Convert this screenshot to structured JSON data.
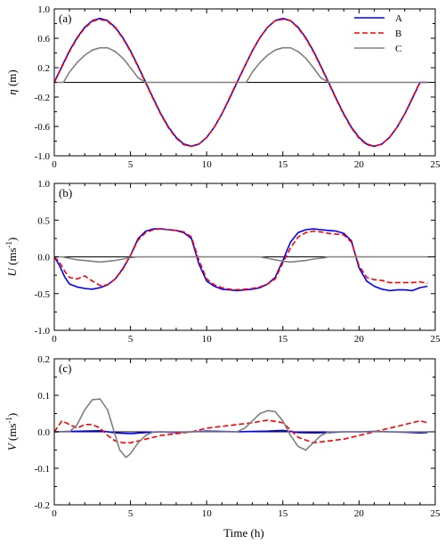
{
  "figure": {
    "xlabel": "Time (h)"
  },
  "legend": {
    "entries": [
      "A",
      "B",
      "C"
    ]
  },
  "chart_data": [
    {
      "type": "line",
      "panel_label": "(a)",
      "ylabel_main": "η",
      "ylabel_unit": " (m)",
      "ylabel_sup": "",
      "ylabel_unit_tail": "",
      "xlim": [
        0,
        25
      ],
      "ylim": [
        -1.0,
        1.0
      ],
      "x_ticks": [
        0,
        5,
        10,
        15,
        20,
        25
      ],
      "y_ticks": [
        -1.0,
        -0.6,
        -0.2,
        0.2,
        0.6,
        1.0
      ],
      "y_tick_labels": [
        "-1.0",
        "-0.6",
        "-0.2",
        "0.2",
        "0.6",
        "1.0"
      ],
      "zero_line": true,
      "legend": true,
      "series": [
        {
          "name": "A",
          "color": "#0000ff",
          "dash": "",
          "width": 1.6,
          "x": [
            0,
            0.5,
            1,
            1.5,
            2,
            2.5,
            3,
            3.5,
            4,
            4.5,
            5,
            5.5,
            6,
            6.5,
            7,
            7.5,
            8,
            8.5,
            9,
            9.5,
            10,
            10.5,
            11,
            11.5,
            12,
            12.5,
            13,
            13.5,
            14,
            14.5,
            15,
            15.5,
            16,
            16.5,
            17,
            17.5,
            18,
            18.5,
            19,
            19.5,
            20,
            20.5,
            21,
            21.5,
            22,
            22.5,
            23,
            23.5,
            24,
            24.5
          ],
          "y": [
            0,
            0.22,
            0.43,
            0.61,
            0.75,
            0.84,
            0.87,
            0.84,
            0.75,
            0.61,
            0.43,
            0.22,
            0.0,
            -0.22,
            -0.43,
            -0.61,
            -0.75,
            -0.84,
            -0.87,
            -0.84,
            -0.75,
            -0.61,
            -0.43,
            -0.22,
            0.0,
            0.22,
            0.43,
            0.61,
            0.75,
            0.84,
            0.87,
            0.84,
            0.75,
            0.61,
            0.43,
            0.22,
            0.0,
            -0.22,
            -0.43,
            -0.61,
            -0.75,
            -0.84,
            -0.87,
            -0.84,
            -0.75,
            -0.61,
            -0.43,
            -0.22,
            0.0,
            0.0
          ]
        },
        {
          "name": "B",
          "color": "#ff0000",
          "dash": "6,3",
          "width": 1.6,
          "x": [
            0,
            0.5,
            1,
            1.5,
            2,
            2.5,
            3,
            3.5,
            4,
            4.5,
            5,
            5.5,
            6,
            6.5,
            7,
            7.5,
            8,
            8.5,
            9,
            9.5,
            10,
            10.5,
            11,
            11.5,
            12,
            12.5,
            13,
            13.5,
            14,
            14.5,
            15,
            15.5,
            16,
            16.5,
            17,
            17.5,
            18,
            18.5,
            19,
            19.5,
            20,
            20.5,
            21,
            21.5,
            22,
            22.5,
            23,
            23.5,
            24,
            24.5
          ],
          "y": [
            0,
            0.21,
            0.42,
            0.6,
            0.74,
            0.83,
            0.86,
            0.83,
            0.74,
            0.6,
            0.42,
            0.21,
            -0.01,
            -0.23,
            -0.44,
            -0.62,
            -0.76,
            -0.85,
            -0.87,
            -0.84,
            -0.75,
            -0.61,
            -0.43,
            -0.21,
            0.01,
            0.22,
            0.43,
            0.61,
            0.75,
            0.84,
            0.86,
            0.84,
            0.74,
            0.6,
            0.42,
            0.21,
            -0.01,
            -0.23,
            -0.44,
            -0.62,
            -0.76,
            -0.85,
            -0.87,
            -0.84,
            -0.75,
            -0.61,
            -0.43,
            -0.21,
            0.0,
            0.0
          ]
        },
        {
          "name": "C",
          "color": "#808080",
          "dash": "",
          "width": 1.6,
          "x": [
            0,
            0.6,
            1,
            1.5,
            2,
            2.5,
            3,
            3.5,
            4,
            4.5,
            5,
            5.5,
            6,
            12,
            12.6,
            13,
            13.5,
            14,
            14.5,
            15,
            15.5,
            16,
            16.5,
            17,
            17.5,
            18,
            24.5
          ],
          "y": [
            0,
            0,
            0.14,
            0.27,
            0.37,
            0.44,
            0.47,
            0.47,
            0.42,
            0.33,
            0.2,
            0.06,
            0,
            0,
            0,
            0.14,
            0.27,
            0.37,
            0.44,
            0.47,
            0.47,
            0.42,
            0.33,
            0.2,
            0.06,
            0,
            0
          ]
        }
      ]
    },
    {
      "type": "line",
      "panel_label": "(b)",
      "ylabel_main": "U",
      "ylabel_unit": " (ms",
      "ylabel_sup": "-1",
      "ylabel_unit_tail": ")",
      "xlim": [
        0,
        25
      ],
      "ylim": [
        -1.0,
        1.0
      ],
      "x_ticks": [
        0,
        5,
        10,
        15,
        20,
        25
      ],
      "y_ticks": [
        -1.0,
        -0.5,
        0.0,
        0.5,
        1.0
      ],
      "y_tick_labels": [
        "-1.0",
        "-0.5",
        "0.0",
        "0.5",
        "1.0"
      ],
      "zero_line": true,
      "legend": false,
      "series": [
        {
          "name": "A",
          "color": "#0000ff",
          "dash": "",
          "width": 1.6,
          "x": [
            0,
            0.3,
            0.7,
            1,
            1.5,
            2,
            2.5,
            3,
            3.5,
            4,
            4.5,
            5,
            5.5,
            6,
            6.5,
            7,
            7.5,
            8,
            8.5,
            9,
            9.5,
            10,
            10.5,
            11,
            11.5,
            12,
            12.5,
            13,
            13.5,
            14,
            14.5,
            15,
            15.5,
            16,
            16.5,
            17,
            17.5,
            18,
            18.5,
            19,
            19.5,
            20,
            20.5,
            21,
            21.5,
            22,
            22.5,
            23,
            23.5,
            24,
            24.5
          ],
          "y": [
            0,
            -0.1,
            -0.28,
            -0.37,
            -0.41,
            -0.43,
            -0.44,
            -0.42,
            -0.38,
            -0.3,
            -0.16,
            0.02,
            0.25,
            0.35,
            0.38,
            0.38,
            0.37,
            0.36,
            0.33,
            0.25,
            -0.1,
            -0.33,
            -0.4,
            -0.44,
            -0.45,
            -0.46,
            -0.45,
            -0.44,
            -0.42,
            -0.37,
            -0.28,
            -0.05,
            0.2,
            0.33,
            0.37,
            0.38,
            0.37,
            0.36,
            0.35,
            0.32,
            0.22,
            -0.15,
            -0.33,
            -0.4,
            -0.44,
            -0.46,
            -0.45,
            -0.45,
            -0.46,
            -0.42,
            -0.4
          ]
        },
        {
          "name": "B",
          "color": "#ff0000",
          "dash": "6,3",
          "width": 1.6,
          "x": [
            0,
            0.3,
            0.7,
            1,
            1.5,
            2,
            2.5,
            3,
            3.5,
            4,
            4.5,
            5,
            5.5,
            6,
            6.5,
            7,
            7.5,
            8,
            8.5,
            9,
            9.5,
            10,
            10.5,
            11,
            11.5,
            12,
            12.5,
            13,
            13.5,
            14,
            14.5,
            15,
            15.5,
            16,
            16.5,
            17,
            17.5,
            18,
            18.5,
            19,
            19.5,
            20,
            20.5,
            21,
            21.5,
            22,
            22.5,
            23,
            23.5,
            24,
            24.5
          ],
          "y": [
            0,
            -0.06,
            -0.2,
            -0.28,
            -0.3,
            -0.26,
            -0.33,
            -0.39,
            -0.38,
            -0.3,
            -0.17,
            0.02,
            0.23,
            0.33,
            0.37,
            0.38,
            0.37,
            0.36,
            0.34,
            0.27,
            -0.05,
            -0.3,
            -0.38,
            -0.42,
            -0.44,
            -0.45,
            -0.44,
            -0.43,
            -0.41,
            -0.37,
            -0.3,
            -0.08,
            0.12,
            0.27,
            0.33,
            0.35,
            0.34,
            0.32,
            0.31,
            0.3,
            0.2,
            -0.12,
            -0.28,
            -0.31,
            -0.32,
            -0.35,
            -0.35,
            -0.35,
            -0.35,
            -0.34,
            -0.36
          ]
        },
        {
          "name": "C",
          "color": "#808080",
          "dash": "",
          "width": 1.6,
          "x": [
            0,
            0.5,
            1,
            1.5,
            2,
            2.5,
            3,
            3.5,
            4,
            4.5,
            5,
            5.5,
            13,
            13.5,
            14,
            14.5,
            15,
            15.5,
            16,
            16.5,
            17,
            17.5,
            18,
            24.5
          ],
          "y": [
            0,
            0,
            -0.02,
            -0.04,
            -0.05,
            -0.06,
            -0.07,
            -0.06,
            -0.05,
            -0.03,
            -0.01,
            0,
            0,
            0,
            -0.02,
            -0.04,
            -0.06,
            -0.07,
            -0.06,
            -0.05,
            -0.03,
            -0.02,
            0,
            0
          ]
        }
      ]
    },
    {
      "type": "line",
      "panel_label": "(c)",
      "ylabel_main": "V",
      "ylabel_unit": " (ms",
      "ylabel_sup": "-1",
      "ylabel_unit_tail": ")",
      "xlim": [
        0,
        25
      ],
      "ylim": [
        -0.2,
        0.2
      ],
      "x_ticks": [
        0,
        5,
        10,
        15,
        20,
        25
      ],
      "y_ticks": [
        -0.2,
        -0.1,
        0.0,
        0.1,
        0.2
      ],
      "y_tick_labels": [
        "-0.2",
        "-0.1",
        "0.0",
        "0.1",
        "0.2"
      ],
      "zero_line": true,
      "legend": false,
      "series": [
        {
          "name": "A",
          "color": "#0000ff",
          "dash": "",
          "width": 1.6,
          "x": [
            0,
            1,
            2,
            3,
            4,
            5,
            6,
            7,
            8,
            9,
            10,
            11,
            12,
            13,
            14,
            15,
            16,
            17,
            18,
            19,
            20,
            21,
            22,
            23,
            24,
            24.5
          ],
          "y": [
            0,
            0.001,
            0.002,
            0.003,
            -0.003,
            -0.005,
            -0.002,
            0.0,
            -0.002,
            0.0,
            0.002,
            0.001,
            0.0,
            0.001,
            0.002,
            0.004,
            -0.002,
            -0.003,
            -0.002,
            0.0,
            0.0,
            0.001,
            0.0,
            -0.001,
            -0.003,
            -0.002
          ]
        },
        {
          "name": "B",
          "color": "#ff0000",
          "dash": "6,3",
          "width": 1.6,
          "x": [
            0,
            0.5,
            1,
            1.5,
            2,
            2.5,
            3,
            3.5,
            4,
            4.5,
            5,
            5.5,
            6,
            7,
            8,
            9,
            10,
            11,
            12,
            13,
            14,
            15,
            15.5,
            16,
            17,
            18,
            19,
            20,
            21,
            22,
            23,
            24,
            24.5
          ],
          "y": [
            0,
            0.03,
            0.02,
            0.01,
            0.02,
            0.02,
            0.01,
            -0.01,
            -0.025,
            -0.03,
            -0.03,
            -0.025,
            -0.02,
            -0.01,
            -0.005,
            0.0,
            0.01,
            0.015,
            0.02,
            0.025,
            0.032,
            0.025,
            0.005,
            -0.015,
            -0.03,
            -0.025,
            -0.02,
            -0.01,
            0.0,
            0.01,
            0.02,
            0.03,
            0.025
          ]
        },
        {
          "name": "C",
          "color": "#808080",
          "dash": "",
          "width": 1.6,
          "x": [
            0,
            1,
            1.5,
            2,
            2.5,
            3,
            3.5,
            4,
            4.3,
            4.7,
            5,
            5.5,
            6,
            6.5,
            7,
            12,
            12.5,
            13,
            13.5,
            14,
            14.5,
            15,
            15.5,
            16,
            16.5,
            17,
            17.5,
            18,
            24.5
          ],
          "y": [
            0,
            0,
            0.02,
            0.06,
            0.088,
            0.09,
            0.06,
            -0.01,
            -0.05,
            -0.07,
            -0.06,
            -0.03,
            -0.01,
            0.0,
            0.0,
            0,
            0.01,
            0.03,
            0.05,
            0.058,
            0.055,
            0.03,
            -0.01,
            -0.04,
            -0.05,
            -0.03,
            -0.01,
            0.0,
            0
          ]
        }
      ]
    }
  ]
}
